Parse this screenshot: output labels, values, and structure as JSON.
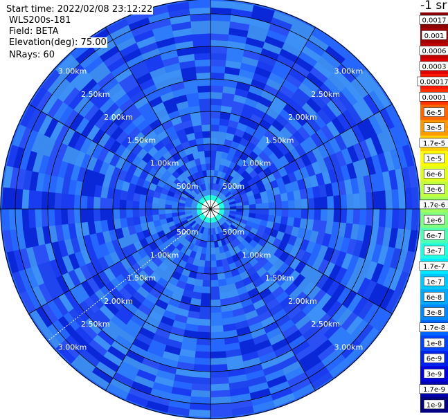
{
  "info": {
    "start_time": "Start time: 2022/02/08 23:12:22",
    "instrument": "WLS200s-181",
    "field": "Field: BETA",
    "elevation": "Elevation(deg): 75.00",
    "nrays": "NRays: 60"
  },
  "colorbar": {
    "title": "-1 sr",
    "ticks": [
      {
        "label": "0.0017",
        "color": "#8b0000"
      },
      {
        "label": "0.001",
        "color": "#a30000"
      },
      {
        "label": "0.0006",
        "color": "#c10000"
      },
      {
        "label": "0.0003",
        "color": "#e00000"
      },
      {
        "label": "0.00017",
        "color": "#ff1a00"
      },
      {
        "label": "0.0001",
        "color": "#ff3300"
      },
      {
        "label": "6e-5",
        "color": "#ff6600"
      },
      {
        "label": "3e-5",
        "color": "#ff9900"
      },
      {
        "label": "1.7e-5",
        "color": "#ffcc00"
      },
      {
        "label": "1e-5",
        "color": "#ffff00"
      },
      {
        "label": "6e-6",
        "color": "#e0ff20"
      },
      {
        "label": "3e-6",
        "color": "#c0ff40"
      },
      {
        "label": "1.7e-6",
        "color": "#a0ff60"
      },
      {
        "label": "1e-6",
        "color": "#80ff80"
      },
      {
        "label": "6e-7",
        "color": "#50ffb0"
      },
      {
        "label": "3e-7",
        "color": "#20ffe0"
      },
      {
        "label": "1.7e-7",
        "color": "#00e8ff"
      },
      {
        "label": "1e-7",
        "color": "#00c8ff"
      },
      {
        "label": "6e-8",
        "color": "#00a8ff"
      },
      {
        "label": "3e-8",
        "color": "#0088ff"
      },
      {
        "label": "1.7e-8",
        "color": "#0066ff"
      },
      {
        "label": "1e-8",
        "color": "#0044ff"
      },
      {
        "label": "6e-9",
        "color": "#0022ee"
      },
      {
        "label": "3e-9",
        "color": "#0000dd"
      },
      {
        "label": "1.7e-9",
        "color": "#0000b0"
      },
      {
        "label": "1e-9",
        "color": "#000080"
      }
    ]
  },
  "chart_data": {
    "type": "heatmap",
    "projection": "polar PPI",
    "range_rings_km": [
      0.5,
      1.0,
      1.5,
      2.0,
      2.5,
      3.0
    ],
    "ring_labels": [
      "500m",
      "1.00km",
      "1.50km",
      "2.00km",
      "2.50km",
      "3.00km"
    ],
    "max_range_km": 3.2,
    "n_rays": 60,
    "dominant_value_range": [
      "1e-9",
      "1e-7"
    ],
    "near_range_value": "1.7e-7",
    "cell_palette": [
      "#1a3cf0",
      "#2a50f5",
      "#2566ff",
      "#2f7cfa",
      "#3d90f6",
      "#0a28d8",
      "#1f45ee",
      "#3a8af0"
    ]
  }
}
